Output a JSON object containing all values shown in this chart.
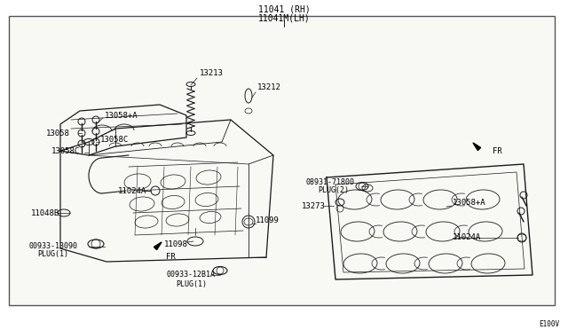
{
  "bg_color": "#ffffff",
  "border_color": "#333333",
  "line_color": "#1a1a1a",
  "text_color": "#000000",
  "fig_width": 6.4,
  "fig_height": 3.72,
  "title_top": "11041 (RH)",
  "title_top2": "11041M(LH)",
  "watermark": "E100V",
  "inner_bg": "#f8f8f5"
}
